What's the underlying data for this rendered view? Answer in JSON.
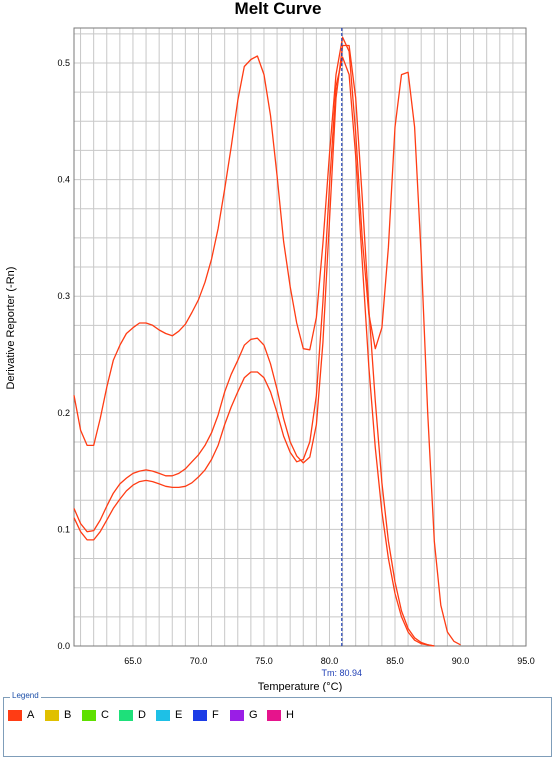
{
  "chart_data": {
    "type": "line",
    "title": "Melt Curve",
    "xlabel": "Temperature (°C)",
    "ylabel": "Derivative Reporter (-Rn)",
    "xlim": [
      60.5,
      95
    ],
    "ylim": [
      0,
      0.53
    ],
    "xticks": [
      "65.0",
      "70.0",
      "75.0",
      "80.0",
      "85.0",
      "90.0",
      "95.0"
    ],
    "yticks": [
      "0.0",
      "0.1",
      "0.2",
      "0.3",
      "0.4",
      "0.5"
    ],
    "grid": true,
    "series": [
      {
        "color": "#ff3c14",
        "x": [
          60.5,
          61,
          61.5,
          62,
          62.5,
          63,
          63.5,
          64,
          64.5,
          65,
          65.5,
          66,
          66.5,
          67,
          67.5,
          68,
          68.5,
          69,
          69.5,
          70,
          70.5,
          71,
          71.5,
          72,
          72.5,
          73,
          73.5,
          74,
          74.5,
          75,
          75.5,
          76,
          76.5,
          77,
          77.5,
          78,
          78.5,
          79,
          79.5,
          80,
          80.5,
          81,
          81.5,
          82,
          82.5,
          83,
          83.5,
          84,
          84.5,
          85,
          85.5,
          86,
          86.5,
          87,
          87.5,
          88,
          88.5,
          89,
          89.5,
          90
        ],
        "y": [
          0.215,
          0.185,
          0.172,
          0.172,
          0.195,
          0.222,
          0.245,
          0.258,
          0.268,
          0.273,
          0.277,
          0.277,
          0.275,
          0.271,
          0.268,
          0.266,
          0.27,
          0.276,
          0.286,
          0.297,
          0.312,
          0.332,
          0.358,
          0.392,
          0.428,
          0.468,
          0.497,
          0.503,
          0.506,
          0.49,
          0.455,
          0.403,
          0.347,
          0.308,
          0.277,
          0.255,
          0.254,
          0.282,
          0.345,
          0.422,
          0.49,
          0.522,
          0.51,
          0.44,
          0.35,
          0.285,
          0.255,
          0.273,
          0.342,
          0.445,
          0.49,
          0.492,
          0.445,
          0.335,
          0.2,
          0.09,
          0.035,
          0.012,
          0.004,
          0.001
        ]
      },
      {
        "color": "#ff3c14",
        "x": [
          60.5,
          61,
          61.5,
          62,
          62.5,
          63,
          63.5,
          64,
          64.5,
          65,
          65.5,
          66,
          66.5,
          67,
          67.5,
          68,
          68.5,
          69,
          69.5,
          70,
          70.5,
          71,
          71.5,
          72,
          72.5,
          73,
          73.5,
          74,
          74.5,
          75,
          75.5,
          76,
          76.5,
          77,
          77.5,
          78,
          78.5,
          79,
          79.5,
          80,
          80.5,
          81,
          81.5,
          82,
          82.5,
          83,
          83.5,
          84,
          84.5,
          85,
          85.5,
          86,
          86.5,
          87,
          87.5,
          88
        ],
        "y": [
          0.118,
          0.105,
          0.098,
          0.099,
          0.108,
          0.12,
          0.131,
          0.139,
          0.144,
          0.148,
          0.15,
          0.151,
          0.15,
          0.148,
          0.146,
          0.146,
          0.148,
          0.152,
          0.158,
          0.164,
          0.172,
          0.183,
          0.198,
          0.218,
          0.233,
          0.245,
          0.258,
          0.263,
          0.264,
          0.258,
          0.242,
          0.22,
          0.195,
          0.175,
          0.163,
          0.157,
          0.162,
          0.19,
          0.26,
          0.365,
          0.47,
          0.515,
          0.515,
          0.47,
          0.385,
          0.29,
          0.21,
          0.14,
          0.09,
          0.055,
          0.03,
          0.015,
          0.007,
          0.003,
          0.001,
          0.0
        ]
      },
      {
        "color": "#ff3c14",
        "x": [
          60.5,
          61,
          61.5,
          62,
          62.5,
          63,
          63.5,
          64,
          64.5,
          65,
          65.5,
          66,
          66.5,
          67,
          67.5,
          68,
          68.5,
          69,
          69.5,
          70,
          70.5,
          71,
          71.5,
          72,
          72.5,
          73,
          73.5,
          74,
          74.5,
          75,
          75.5,
          76,
          76.5,
          77,
          77.5,
          78,
          78.5,
          79,
          79.5,
          80,
          80.5,
          81,
          81.5,
          82,
          82.5,
          83,
          83.5,
          84,
          84.5,
          85,
          85.5,
          86,
          86.5,
          87,
          87.5,
          88
        ],
        "y": [
          0.11,
          0.098,
          0.091,
          0.091,
          0.098,
          0.108,
          0.118,
          0.126,
          0.133,
          0.138,
          0.141,
          0.142,
          0.141,
          0.139,
          0.137,
          0.136,
          0.136,
          0.137,
          0.14,
          0.145,
          0.151,
          0.16,
          0.172,
          0.19,
          0.205,
          0.218,
          0.23,
          0.235,
          0.235,
          0.23,
          0.218,
          0.2,
          0.18,
          0.166,
          0.158,
          0.16,
          0.175,
          0.215,
          0.295,
          0.395,
          0.48,
          0.505,
          0.49,
          0.42,
          0.33,
          0.24,
          0.17,
          0.115,
          0.075,
          0.045,
          0.025,
          0.012,
          0.005,
          0.002,
          0.001,
          0.0
        ]
      }
    ],
    "marker": {
      "x": 80.94,
      "label": "Tm: 80.94",
      "color": "#1f3fb5"
    },
    "legend": {
      "title": "Legend",
      "placement": "bottom",
      "items": [
        {
          "label": "A",
          "color": "#ff3c14"
        },
        {
          "label": "B",
          "color": "#e0c000"
        },
        {
          "label": "C",
          "color": "#5fe000"
        },
        {
          "label": "D",
          "color": "#1ee07a"
        },
        {
          "label": "E",
          "color": "#1ec0e6"
        },
        {
          "label": "F",
          "color": "#1c3ce6"
        },
        {
          "label": "G",
          "color": "#9a1ee6"
        },
        {
          "label": "H",
          "color": "#e6148c"
        }
      ]
    }
  }
}
